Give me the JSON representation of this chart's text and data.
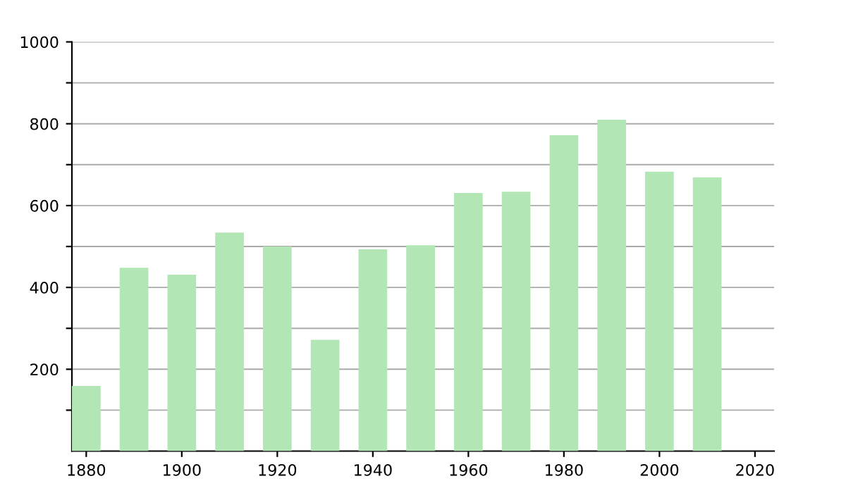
{
  "chart_data": {
    "type": "bar",
    "x": [
      1880,
      1890,
      1900,
      1910,
      1920,
      1930,
      1940,
      1950,
      1960,
      1970,
      1980,
      1990,
      2000,
      2010
    ],
    "values": [
      159,
      448,
      431,
      534,
      500,
      272,
      493,
      503,
      631,
      634,
      772,
      810,
      683,
      669
    ],
    "color": "#b3e6b5",
    "xlim": [
      1877,
      2024
    ],
    "xticks": [
      1880,
      1900,
      1920,
      1940,
      1960,
      1980,
      2000,
      2020
    ],
    "ylim": [
      0,
      1000
    ],
    "yticks": [
      {
        "value": 100,
        "label": null
      },
      200,
      {
        "value": 300,
        "label": null
      },
      400,
      {
        "value": 500,
        "label": null
      },
      600,
      {
        "value": 700,
        "label": null
      },
      800,
      {
        "value": 900,
        "label": null
      },
      1000
    ],
    "grid": "y"
  }
}
